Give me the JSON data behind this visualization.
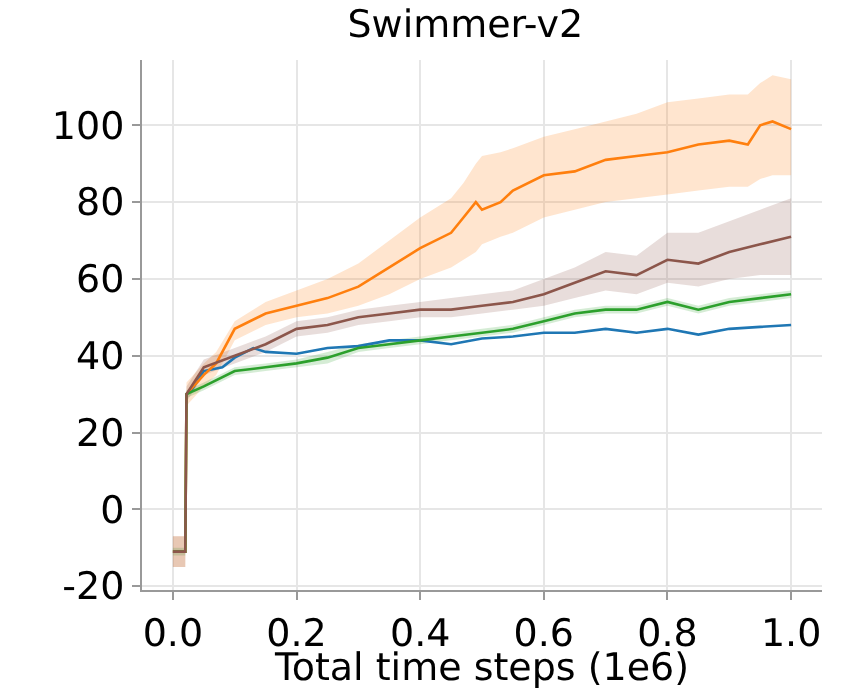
{
  "chart_data": {
    "type": "line",
    "title": "Swimmer-v2",
    "xlabel": "Total time steps (1e6)",
    "xlim": [
      -0.05,
      1.05
    ],
    "ylim": [
      -21,
      117
    ],
    "xticks": [
      {
        "value": 0,
        "label": "0.0"
      },
      {
        "value": 0.2,
        "label": "0.2"
      },
      {
        "value": 0.4,
        "label": "0.4"
      },
      {
        "value": 0.6,
        "label": "0.6"
      },
      {
        "value": 0.8,
        "label": "0.8"
      },
      {
        "value": 1,
        "label": "1.0"
      }
    ],
    "yticks": [
      -20,
      0,
      20,
      40,
      60,
      80,
      100
    ],
    "grid": true,
    "series": [
      {
        "color": "#1f77b4",
        "x": [
          0.022,
          0.03,
          0.05,
          0.08,
          0.1,
          0.13,
          0.15,
          0.2,
          0.25,
          0.3,
          0.35,
          0.4,
          0.45,
          0.5,
          0.55,
          0.6,
          0.65,
          0.7,
          0.75,
          0.8,
          0.85,
          0.9,
          0.95,
          1.0
        ],
        "values": [
          30,
          31,
          36,
          37,
          39.5,
          42,
          41,
          40.5,
          42,
          42.5,
          44,
          44,
          43,
          44.5,
          45,
          46,
          46,
          47,
          46,
          47,
          45.5,
          47,
          47.5,
          48
        ]
      },
      {
        "color": "#ff7f0e",
        "x": [
          0,
          0.02,
          0.022,
          0.05,
          0.07,
          0.1,
          0.15,
          0.2,
          0.25,
          0.3,
          0.35,
          0.4,
          0.45,
          0.47,
          0.49,
          0.5,
          0.53,
          0.55,
          0.6,
          0.65,
          0.7,
          0.75,
          0.8,
          0.85,
          0.9,
          0.93,
          0.95,
          0.97,
          1.0
        ],
        "values": [
          -11,
          -11,
          30,
          35,
          38,
          47,
          51,
          53,
          55,
          58,
          63,
          68,
          72,
          76,
          80,
          78,
          80,
          83,
          87,
          88,
          91,
          92,
          93,
          95,
          96,
          95,
          100,
          101,
          99
        ],
        "lower": [
          -15,
          -15,
          27,
          32,
          35,
          44,
          48,
          50,
          51,
          53,
          56,
          60,
          63,
          65,
          67,
          69,
          71,
          72,
          76,
          78,
          80,
          81,
          82,
          83,
          84,
          84,
          86,
          87,
          87
        ],
        "upper": [
          -7,
          -7,
          33,
          38,
          41,
          49,
          54,
          57,
          60,
          64,
          70,
          76,
          81,
          85,
          90,
          92,
          93,
          94,
          97,
          99,
          101,
          103,
          106,
          107,
          108,
          108,
          111,
          113,
          112
        ]
      },
      {
        "color": "#2ca02c",
        "x": [
          0,
          0.02,
          0.022,
          0.05,
          0.1,
          0.15,
          0.2,
          0.25,
          0.3,
          0.35,
          0.4,
          0.45,
          0.5,
          0.55,
          0.6,
          0.65,
          0.7,
          0.75,
          0.8,
          0.85,
          0.9,
          0.95,
          1.0
        ],
        "values": [
          -11,
          -11,
          30,
          32,
          36,
          37,
          38,
          39.5,
          42,
          43,
          44,
          45,
          46,
          47,
          49,
          51,
          52,
          52,
          54,
          52,
          54,
          55,
          56
        ],
        "lower": [
          -12,
          -12,
          29,
          31,
          35,
          36,
          37,
          38,
          41,
          42,
          43,
          44,
          45,
          46,
          48,
          50,
          51,
          51,
          53,
          51,
          53,
          54,
          55
        ],
        "upper": [
          -10,
          -10,
          31,
          33,
          37,
          38,
          39,
          41,
          43,
          44,
          45,
          46,
          47,
          48,
          50,
          52,
          53,
          53,
          55,
          53,
          55,
          56,
          57
        ]
      },
      {
        "color": "#8c564b",
        "x": [
          0,
          0.02,
          0.022,
          0.05,
          0.1,
          0.15,
          0.2,
          0.25,
          0.3,
          0.35,
          0.4,
          0.45,
          0.5,
          0.55,
          0.6,
          0.65,
          0.7,
          0.75,
          0.8,
          0.85,
          0.9,
          0.95,
          1.0
        ],
        "values": [
          -11,
          -11,
          30,
          37,
          40,
          43,
          47,
          48,
          50,
          51,
          52,
          52,
          53,
          54,
          56,
          59,
          62,
          61,
          65,
          64,
          67,
          69,
          71
        ],
        "lower": [
          -15,
          -15,
          28,
          35,
          38,
          41,
          45,
          46,
          48,
          49,
          50,
          50,
          51,
          52,
          53,
          55,
          57,
          56,
          59,
          58,
          60,
          61,
          61
        ],
        "upper": [
          -7,
          -7,
          32,
          39,
          42,
          45,
          49,
          50,
          52,
          53,
          54,
          55,
          56,
          57,
          60,
          63,
          67,
          66,
          72,
          72,
          75,
          78,
          81
        ]
      }
    ]
  }
}
